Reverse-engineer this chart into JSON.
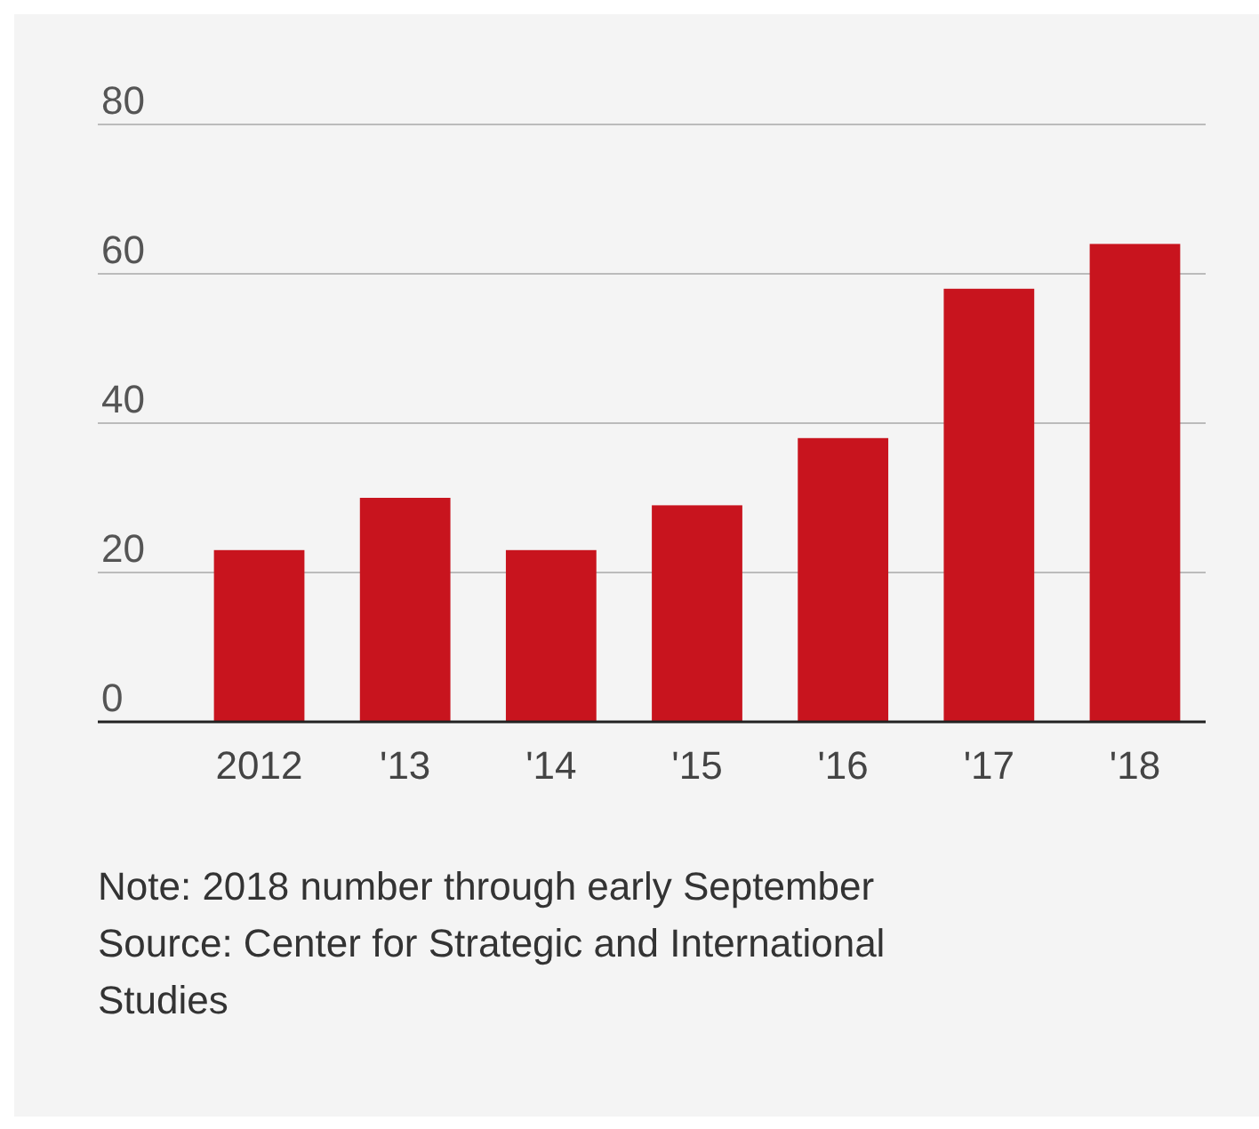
{
  "chart_data": {
    "type": "bar",
    "categories": [
      "2012",
      "'13",
      "'14",
      "'15",
      "'16",
      "'17",
      "'18"
    ],
    "values": [
      23,
      30,
      23,
      29,
      38,
      58,
      64
    ],
    "color": "#c8141e",
    "ylim": [
      0,
      80
    ],
    "yticks": [
      0,
      20,
      40,
      60,
      80
    ],
    "grid": "y",
    "annotations": [
      "Note: 2018 number through early September",
      "Source: Center for Strategic and International Studies"
    ]
  }
}
